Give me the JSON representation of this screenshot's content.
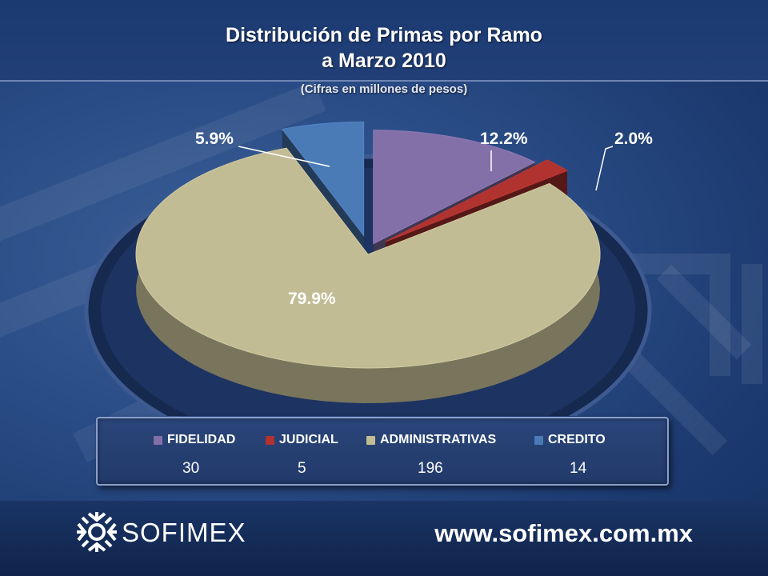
{
  "header": {
    "title_line1": "Distribución de Primas por Ramo",
    "title_line2": "a Marzo 2010",
    "subtitle": "(Cifras en millones de pesos)"
  },
  "chart_data": {
    "type": "pie",
    "title": "Distribución de Primas por Ramo a Marzo 2010",
    "subtitle": "(Cifras en millones de pesos)",
    "categories": [
      "FIDELIDAD",
      "JUDICIAL",
      "ADMINISTRATIVAS",
      "CREDITO"
    ],
    "values": [
      30,
      5,
      196,
      14
    ],
    "percent_labels": [
      "12.2%",
      "2.0%",
      "79.9%",
      "5.9%"
    ],
    "colors": [
      "#8470a8",
      "#b0332f",
      "#c2bc95",
      "#4b7bb7"
    ],
    "legend_position": "bottom"
  },
  "legend": {
    "items": [
      {
        "label": "FIDELIDAD",
        "value": "30",
        "color": "#8470a8"
      },
      {
        "label": "JUDICIAL",
        "value": "5",
        "color": "#b0332f"
      },
      {
        "label": "ADMINISTRATIVAS",
        "value": "196",
        "color": "#c2bc95"
      },
      {
        "label": "CREDITO",
        "value": "14",
        "color": "#4b7bb7"
      }
    ]
  },
  "footer": {
    "brand": "SOFIMEX",
    "url": "www.sofimex.com.mx"
  }
}
